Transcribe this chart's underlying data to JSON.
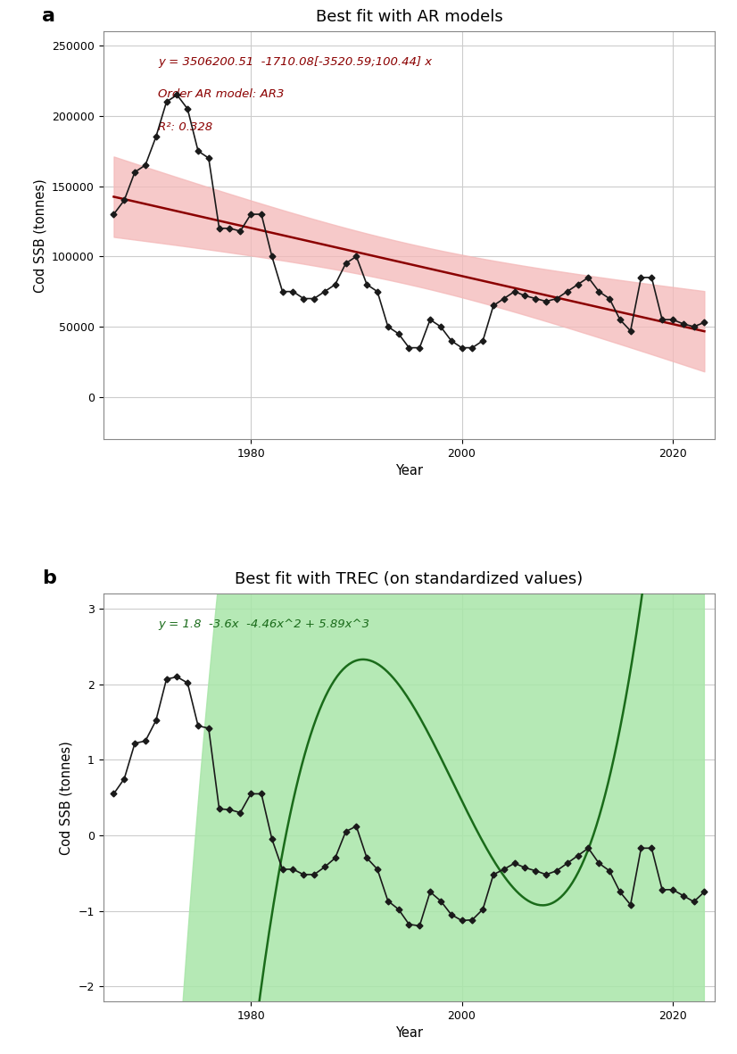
{
  "title_a": "Best fit with AR models",
  "title_b": "Best fit with TREC (on standardized values)",
  "ylabel": "Cod SSB (tonnes)",
  "xlabel": "Year",
  "label_a": "a",
  "label_b": "b",
  "annotation_a_line1": "y = 3506200.51  -1710.08[-3520.59;100.44] x",
  "annotation_a_line2": "Order AR model: AR3",
  "annotation_a_line3": "R²: 0.328",
  "annotation_b": "y = 1.8  -3.6x  -4.46x^2 + 5.89x^3",
  "years": [
    1967,
    1968,
    1969,
    1970,
    1971,
    1972,
    1973,
    1974,
    1975,
    1976,
    1977,
    1978,
    1979,
    1980,
    1981,
    1982,
    1983,
    1984,
    1985,
    1986,
    1987,
    1988,
    1989,
    1990,
    1991,
    1992,
    1993,
    1994,
    1995,
    1996,
    1997,
    1998,
    1999,
    2000,
    2001,
    2002,
    2003,
    2004,
    2005,
    2006,
    2007,
    2008,
    2009,
    2010,
    2011,
    2012,
    2013,
    2014,
    2015,
    2016,
    2017,
    2018,
    2019,
    2020,
    2021,
    2022,
    2023
  ],
  "ssb": [
    130000,
    140000,
    160000,
    165000,
    185000,
    210000,
    215000,
    205000,
    175000,
    170000,
    120000,
    120000,
    118000,
    130000,
    130000,
    100000,
    75000,
    75000,
    70000,
    70000,
    75000,
    80000,
    95000,
    100000,
    80000,
    75000,
    50000,
    45000,
    35000,
    35000,
    55000,
    50000,
    40000,
    35000,
    35000,
    40000,
    65000,
    70000,
    75000,
    72000,
    70000,
    68000,
    70000,
    75000,
    80000,
    85000,
    75000,
    70000,
    55000,
    47000,
    85000,
    85000,
    55000,
    55000,
    52000,
    50000,
    53000
  ],
  "ssb_std": [
    0.55,
    0.75,
    1.22,
    1.25,
    1.52,
    2.07,
    2.1,
    2.02,
    1.45,
    1.42,
    0.35,
    0.34,
    0.3,
    0.55,
    0.55,
    -0.05,
    -0.45,
    -0.45,
    -0.52,
    -0.52,
    -0.42,
    -0.3,
    0.05,
    0.12,
    -0.3,
    -0.45,
    -0.87,
    -0.98,
    -1.18,
    -1.2,
    -0.75,
    -0.87,
    -1.05,
    -1.13,
    -1.12,
    -0.98,
    -0.52,
    -0.45,
    -0.37,
    -0.43,
    -0.47,
    -0.52,
    -0.47,
    -0.37,
    -0.27,
    -0.17,
    -0.37,
    -0.47,
    -0.75,
    -0.92,
    -0.17,
    -0.17,
    -0.72,
    -0.72,
    -0.8,
    -0.88,
    -0.75
  ],
  "trend_color_a": "#8B0000",
  "ci_color_a": "#f4b8b8",
  "trend_color_b": "#1a6b1a",
  "ci_color_b": "#a8e6a8",
  "data_color": "#1a1a1a",
  "bg_color": "#ffffff",
  "grid_color": "#cccccc",
  "ylim_a": [
    -30000,
    260000
  ],
  "ylim_b": [
    -2.2,
    3.2
  ],
  "yticks_a": [
    0,
    50000,
    100000,
    150000,
    200000,
    250000
  ],
  "yticks_b": [
    -2,
    -1,
    0,
    1,
    2,
    3
  ],
  "xticks": [
    1980,
    2000,
    2020
  ],
  "ar_slope": -1710.08,
  "ar_intercept": 3506200.51,
  "trec_a0": 1.8,
  "trec_a1": -3.6,
  "trec_a2": -4.46,
  "trec_a3": 5.89,
  "year_start": 1967,
  "year_end": 2023
}
